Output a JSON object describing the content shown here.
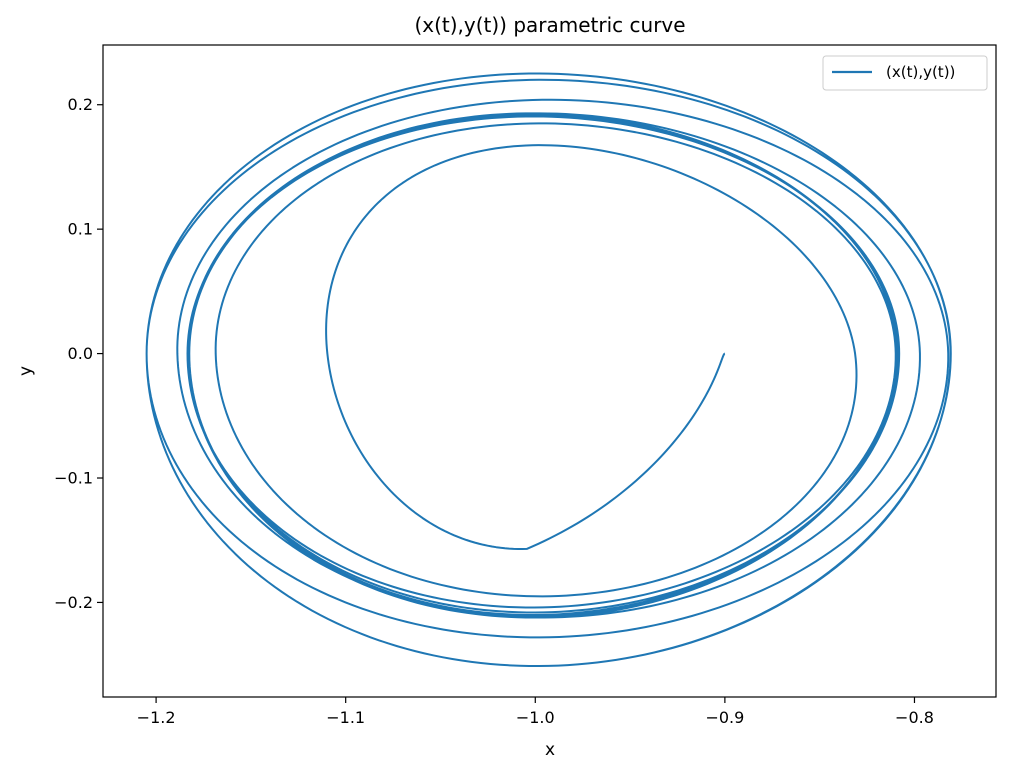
{
  "chart_data": {
    "type": "line",
    "title": "(x(t),y(t)) parametric curve",
    "xlabel": "x",
    "ylabel": "y",
    "xlim": [
      -1.228,
      -0.757
    ],
    "ylim": [
      -0.276,
      0.248
    ],
    "xticks": [
      -1.2,
      -1.1,
      -1.0,
      -0.9,
      -0.8
    ],
    "xtick_labels": [
      "−1.2",
      "−1.1",
      "−1.0",
      "−0.9",
      "−0.8"
    ],
    "yticks": [
      -0.2,
      -0.1,
      0.0,
      0.1,
      0.2
    ],
    "ytick_labels": [
      "−0.2",
      "−0.1",
      "0.0",
      "0.1",
      "0.2"
    ],
    "grid": false,
    "legend": {
      "position": "top-right",
      "entries": [
        "(x(t),y(t))"
      ]
    },
    "series": [
      {
        "name": "(x(t),y(t))",
        "color": "#1f77b4",
        "loops": [
          {
            "center": -1.0045,
            "rx": 0.0955,
            "top": 0.155,
            "bottom": -0.157,
            "skew": 0.03
          },
          {
            "center": -0.992,
            "rx": 0.174,
            "top": 0.18,
            "bottom": -0.195,
            "skew": 0.03
          },
          {
            "center": -0.996,
            "rx": 0.1875,
            "top": 0.19,
            "bottom": -0.204,
            "skew": 0.03
          },
          {
            "center": -0.9955,
            "rx": 0.1875,
            "top": 0.191,
            "bottom": -0.208,
            "skew": 0.03
          },
          {
            "center": -0.996,
            "rx": 0.187,
            "top": 0.192,
            "bottom": -0.21,
            "skew": 0.03
          },
          {
            "center": -0.996,
            "rx": 0.1865,
            "top": 0.192,
            "bottom": -0.211,
            "skew": 0.03
          },
          {
            "center": -0.996,
            "rx": 0.1865,
            "top": 0.193,
            "bottom": -0.212,
            "skew": 0.03
          },
          {
            "center": -0.996,
            "rx": 0.1865,
            "top": 0.193,
            "bottom": -0.212,
            "skew": 0.03
          },
          {
            "center": -0.9905,
            "rx": 0.1955,
            "top": 0.193,
            "bottom": -0.212,
            "skew": 0.03
          },
          {
            "center": -0.9925,
            "rx": 0.2125,
            "top": 0.215,
            "bottom": -0.228,
            "skew": 0.03
          },
          {
            "center": -0.993,
            "rx": 0.212,
            "top": 0.225,
            "bottom": -0.251,
            "skew": 0.03
          }
        ],
        "start": [
          -0.9,
          0.0
        ]
      }
    ]
  }
}
